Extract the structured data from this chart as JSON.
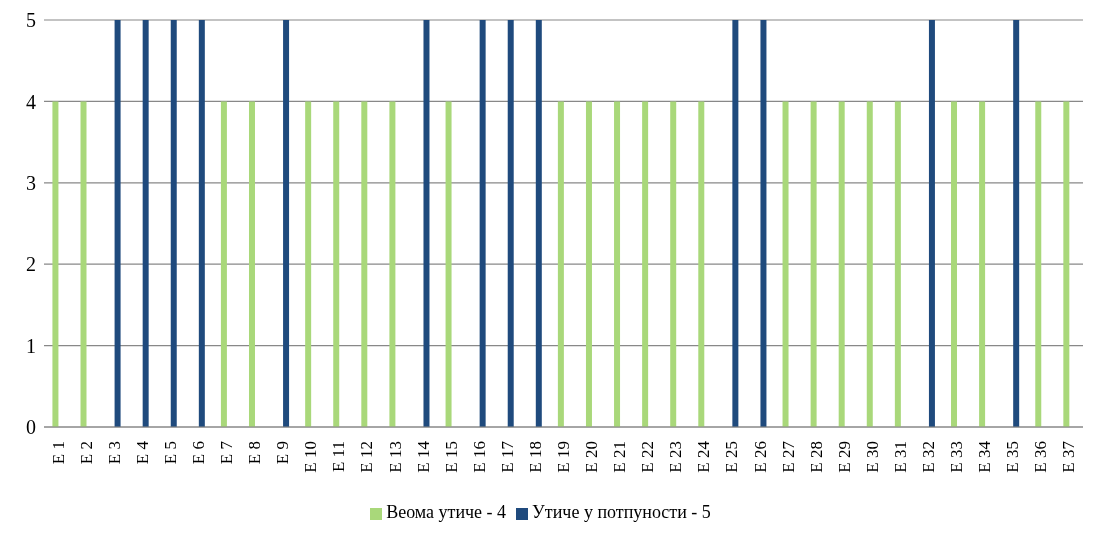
{
  "chart_data": {
    "type": "bar",
    "categories": [
      "E 1",
      "E 2",
      "E 3",
      "E 4",
      "E 5",
      "E 6",
      "E 7",
      "E 8",
      "E 9",
      "E 10",
      "E 11",
      "E 12",
      "E 13",
      "E 14",
      "E 15",
      "E 16",
      "E 17",
      "E 18",
      "E 19",
      "E 20",
      "E 21",
      "E 22",
      "E 23",
      "E 24",
      "E 25",
      "E 26",
      "E 27",
      "E 28",
      "E 29",
      "E 30",
      "E 31",
      "E 32",
      "E 33",
      "E 34",
      "E 35",
      "E 36",
      "E 37"
    ],
    "series": [
      {
        "name": "Веома утиче - 4",
        "color": "#a9d87a",
        "values": [
          4,
          4,
          null,
          null,
          null,
          null,
          4,
          4,
          null,
          4,
          4,
          4,
          4,
          null,
          4,
          null,
          null,
          null,
          4,
          4,
          4,
          4,
          4,
          4,
          null,
          null,
          4,
          4,
          4,
          4,
          4,
          null,
          4,
          4,
          null,
          4,
          4
        ]
      },
      {
        "name": "Утиче у потпуности - 5",
        "color": "#1f4a7d",
        "values": [
          null,
          null,
          5,
          5,
          5,
          5,
          null,
          null,
          5,
          null,
          null,
          null,
          null,
          5,
          null,
          5,
          5,
          5,
          null,
          null,
          null,
          null,
          null,
          null,
          5,
          5,
          null,
          null,
          null,
          null,
          null,
          5,
          null,
          null,
          5,
          null,
          null
        ]
      }
    ],
    "ylim": [
      0,
      5
    ],
    "yticks": [
      0,
      1,
      2,
      3,
      4,
      5
    ],
    "grid": "y",
    "legend": "bottom"
  }
}
